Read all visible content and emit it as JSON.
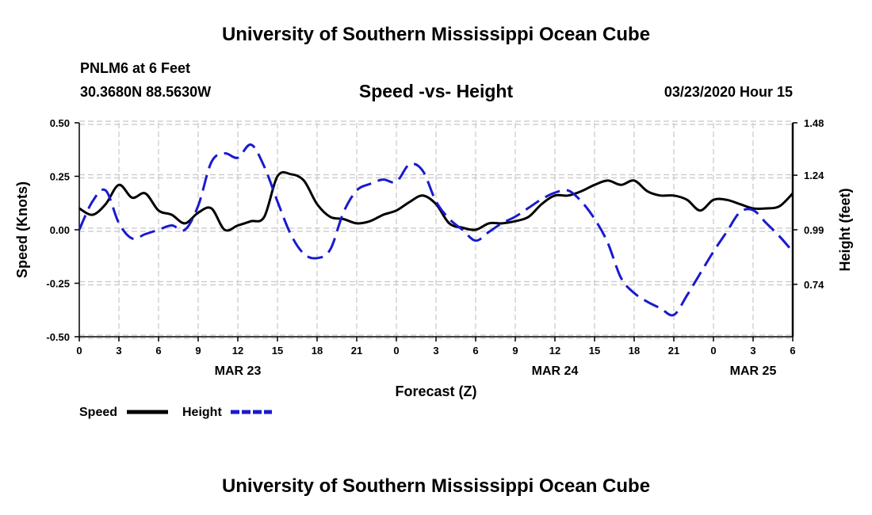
{
  "header": {
    "title_top": "University of Southern Mississippi Ocean Cube",
    "title_bottom": "University of Southern Mississippi Ocean Cube",
    "station": "PNLM6 at 6 Feet",
    "coords": "30.3680N 88.5630W",
    "chart_title": "Speed -vs- Height",
    "datetime": "03/23/2020 Hour 15"
  },
  "legend": {
    "speed_label": "Speed",
    "height_label": "Height"
  },
  "colors": {
    "speed": "#000000",
    "height": "#1a1acd",
    "grid": "#c8c8c8"
  },
  "chart_data": {
    "type": "line",
    "title": "Speed -vs- Height",
    "xlabel": "Forecast (Z)",
    "ylabel": "Speed (Knots)",
    "y2label": "Height (feet)",
    "xlim": [
      0,
      54
    ],
    "ylim": [
      -0.5,
      0.5
    ],
    "y2lim": [
      0.5,
      1.48
    ],
    "xtick_positions": [
      0,
      3,
      6,
      9,
      12,
      15,
      18,
      21,
      24,
      27,
      30,
      33,
      36,
      39,
      42,
      45,
      48,
      51,
      54
    ],
    "xtick_labels": [
      "0",
      "3",
      "6",
      "9",
      "12",
      "15",
      "18",
      "21",
      "0",
      "3",
      "6",
      "9",
      "12",
      "15",
      "18",
      "21",
      "0",
      "3",
      "6"
    ],
    "date_labels": [
      {
        "x": 12,
        "label": "MAR 23"
      },
      {
        "x": 36,
        "label": "MAR 24"
      },
      {
        "x": 51,
        "label": "MAR 25"
      }
    ],
    "yticks": [
      0.5,
      0.25,
      0.0,
      -0.25,
      -0.5
    ],
    "ytick_labels": [
      "0.50",
      "0.25",
      "0.00",
      "-0.25",
      "-0.50"
    ],
    "y2ticks": [
      1.48,
      1.24,
      0.99,
      0.74
    ],
    "y2tick_labels": [
      "1.48",
      "1.24",
      "0.99",
      "0.74"
    ],
    "series": [
      {
        "name": "Speed",
        "axis": "left",
        "style": "solid",
        "x": [
          0,
          1,
          2,
          3,
          4,
          5,
          6,
          7,
          8,
          9,
          10,
          11,
          12,
          13,
          14,
          15,
          16,
          17,
          18,
          19,
          20,
          21,
          22,
          23,
          24,
          25,
          26,
          27,
          28,
          29,
          30,
          31,
          32,
          33,
          34,
          35,
          36,
          37,
          38,
          39,
          40,
          41,
          42,
          43,
          44,
          45,
          46,
          47,
          48,
          49,
          50,
          51,
          52,
          53,
          54
        ],
        "values": [
          0.1,
          0.07,
          0.12,
          0.21,
          0.15,
          0.17,
          0.09,
          0.07,
          0.03,
          0.08,
          0.1,
          0.0,
          0.02,
          0.04,
          0.06,
          0.25,
          0.26,
          0.23,
          0.12,
          0.06,
          0.05,
          0.03,
          0.04,
          0.07,
          0.09,
          0.13,
          0.16,
          0.12,
          0.03,
          0.01,
          0.0,
          0.03,
          0.03,
          0.04,
          0.06,
          0.12,
          0.16,
          0.16,
          0.18,
          0.21,
          0.23,
          0.21,
          0.23,
          0.18,
          0.16,
          0.16,
          0.14,
          0.09,
          0.14,
          0.14,
          0.12,
          0.1,
          0.1,
          0.11,
          0.17
        ]
      },
      {
        "name": "Height",
        "axis": "right",
        "style": "dashed",
        "x": [
          0,
          1,
          2,
          3,
          4,
          5,
          6,
          7,
          8,
          9,
          10,
          11,
          12,
          13,
          14,
          15,
          16,
          17,
          18,
          19,
          20,
          21,
          22,
          23,
          24,
          25,
          26,
          27,
          28,
          29,
          30,
          31,
          32,
          33,
          34,
          35,
          36,
          37,
          38,
          39,
          40,
          41,
          42,
          43,
          44,
          45,
          46,
          47,
          48,
          49,
          50,
          51,
          52,
          53,
          54
        ],
        "values": [
          0.99,
          1.12,
          1.17,
          1.02,
          0.95,
          0.97,
          0.99,
          1.01,
          0.99,
          1.1,
          1.3,
          1.34,
          1.32,
          1.38,
          1.28,
          1.12,
          0.97,
          0.88,
          0.86,
          0.9,
          1.07,
          1.17,
          1.2,
          1.22,
          1.21,
          1.29,
          1.26,
          1.12,
          1.04,
          0.99,
          0.94,
          0.98,
          1.02,
          1.05,
          1.09,
          1.13,
          1.16,
          1.17,
          1.12,
          1.04,
          0.93,
          0.77,
          0.7,
          0.66,
          0.63,
          0.6,
          0.69,
          0.79,
          0.89,
          0.98,
          1.07,
          1.08,
          1.02,
          0.96,
          0.89
        ]
      }
    ]
  }
}
